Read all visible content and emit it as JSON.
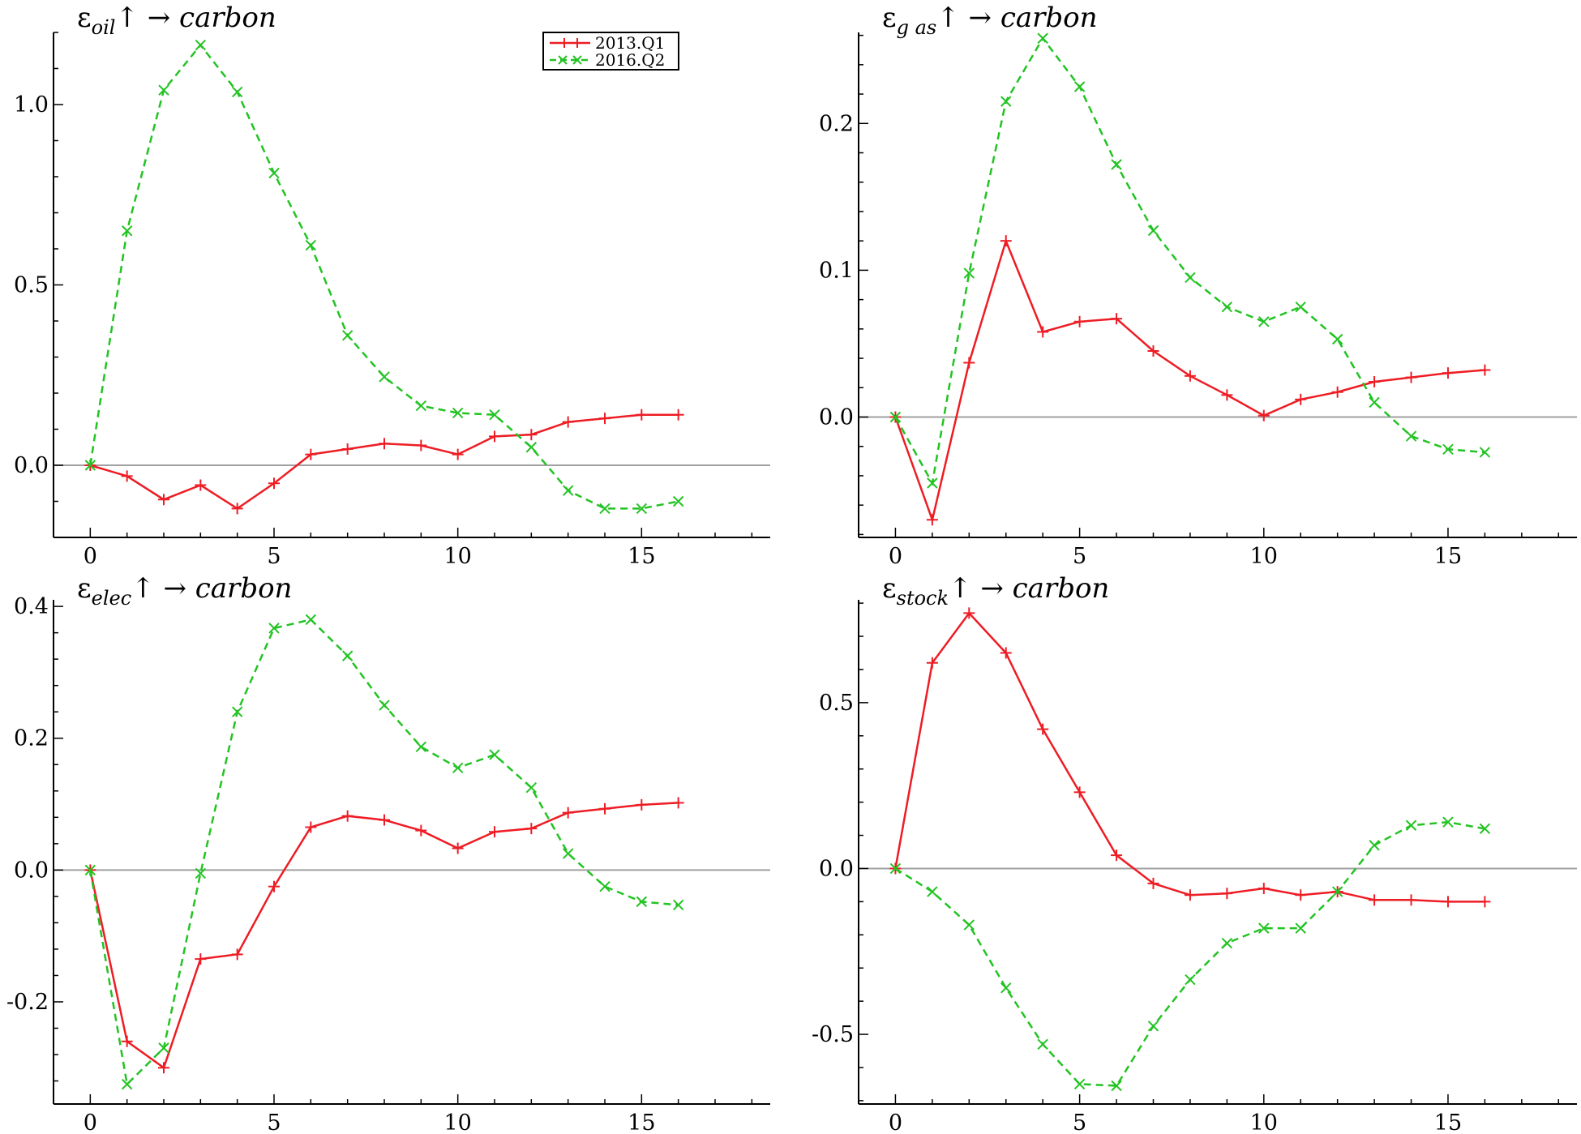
{
  "colors": {
    "series_2013": "#ee1c24",
    "series_2016": "#22c322",
    "zero_line": "#a0a0a0",
    "axis": "#000000"
  },
  "legend": {
    "placement": "top-left panel, top-right",
    "entries": [
      "2013.Q1",
      "2016.Q2"
    ]
  },
  "chart_data": [
    {
      "type": "line",
      "title": {
        "prefix": "ε",
        "sub": "oil",
        "suffix": "↑ → carbon"
      },
      "x": [
        0,
        1,
        2,
        3,
        4,
        5,
        6,
        7,
        8,
        9,
        10,
        11,
        12,
        13,
        14,
        15,
        16
      ],
      "xlim": [
        -1,
        18.5
      ],
      "xticks": [
        "0",
        "5",
        "10",
        "15"
      ],
      "xtick_values": [
        0,
        5,
        10,
        15
      ],
      "ylim": [
        -0.2,
        1.2
      ],
      "yticks": [
        "0.0",
        "0.5",
        "1.0"
      ],
      "ytick_values": [
        0,
        0.5,
        1.0
      ],
      "series": [
        {
          "name": "2013.Q1",
          "style": "solid",
          "marker": "plus",
          "values": [
            0,
            -0.03,
            -0.095,
            -0.055,
            -0.12,
            -0.05,
            0.03,
            0.045,
            0.06,
            0.055,
            0.03,
            0.08,
            0.085,
            0.12,
            0.13,
            0.14,
            0.14
          ]
        },
        {
          "name": "2016.Q2",
          "style": "dashed",
          "marker": "cross",
          "values": [
            0,
            0.65,
            1.04,
            1.165,
            1.035,
            0.81,
            0.61,
            0.36,
            0.245,
            0.165,
            0.145,
            0.14,
            0.05,
            -0.07,
            -0.12,
            -0.12,
            -0.1
          ]
        }
      ]
    },
    {
      "type": "line",
      "title": {
        "prefix": "ε",
        "sub": "g as",
        "suffix": "↑ → carbon"
      },
      "x": [
        0,
        1,
        2,
        3,
        4,
        5,
        6,
        7,
        8,
        9,
        10,
        11,
        12,
        13,
        14,
        15,
        16
      ],
      "xlim": [
        -1,
        18.5
      ],
      "xticks": [
        "0",
        "5",
        "10",
        "15"
      ],
      "xtick_values": [
        0,
        5,
        10,
        15
      ],
      "ylim": [
        -0.082,
        0.262
      ],
      "yticks": [
        "0.0",
        "0.1",
        "0.2"
      ],
      "ytick_values": [
        0,
        0.1,
        0.2
      ],
      "series": [
        {
          "name": "2013.Q1",
          "style": "solid",
          "marker": "plus",
          "values": [
            0,
            -0.07,
            0.037,
            0.12,
            0.058,
            0.065,
            0.067,
            0.045,
            0.028,
            0.015,
            0.001,
            0.012,
            0.017,
            0.024,
            0.027,
            0.03,
            0.032
          ]
        },
        {
          "name": "2016.Q2",
          "style": "dashed",
          "marker": "cross",
          "values": [
            0,
            -0.045,
            0.098,
            0.215,
            0.258,
            0.225,
            0.172,
            0.127,
            0.095,
            0.075,
            0.065,
            0.075,
            0.053,
            0.01,
            -0.013,
            -0.022,
            -0.024
          ]
        }
      ]
    },
    {
      "type": "line",
      "title": {
        "prefix": "ε",
        "sub": "elec",
        "suffix": "↑ → carbon"
      },
      "x": [
        0,
        1,
        2,
        3,
        4,
        5,
        6,
        7,
        8,
        9,
        10,
        11,
        12,
        13,
        14,
        15,
        16
      ],
      "xlim": [
        -1,
        18.5
      ],
      "xticks": [
        "0",
        "5",
        "10",
        "15"
      ],
      "xtick_values": [
        0,
        5,
        10,
        15
      ],
      "ylim": [
        -0.355,
        0.41
      ],
      "yticks": [
        "-0.2",
        "0.0",
        "0.2",
        "0.4"
      ],
      "ytick_values": [
        -0.2,
        0,
        0.2,
        0.4
      ],
      "series": [
        {
          "name": "2013.Q1",
          "style": "solid",
          "marker": "plus",
          "values": [
            0,
            -0.26,
            -0.3,
            -0.135,
            -0.128,
            -0.025,
            0.065,
            0.082,
            0.076,
            0.06,
            0.033,
            0.058,
            0.063,
            0.087,
            0.093,
            0.099,
            0.102
          ]
        },
        {
          "name": "2016.Q2",
          "style": "dashed",
          "marker": "cross",
          "values": [
            0,
            -0.325,
            -0.27,
            -0.005,
            0.24,
            0.367,
            0.38,
            0.325,
            0.25,
            0.187,
            0.155,
            0.175,
            0.125,
            0.025,
            -0.025,
            -0.048,
            -0.053
          ]
        }
      ]
    },
    {
      "type": "line",
      "title": {
        "prefix": "ε",
        "sub": "stock",
        "suffix": "↑ → carbon"
      },
      "x": [
        0,
        1,
        2,
        3,
        4,
        5,
        6,
        7,
        8,
        9,
        10,
        11,
        12,
        13,
        14,
        15,
        16
      ],
      "xlim": [
        -1,
        18.5
      ],
      "xticks": [
        "0",
        "5",
        "10",
        "15"
      ],
      "xtick_values": [
        0,
        5,
        10,
        15
      ],
      "ylim": [
        -0.71,
        0.81
      ],
      "yticks": [
        "-0.5",
        "0.0",
        "0.5"
      ],
      "ytick_values": [
        -0.5,
        0,
        0.5
      ],
      "series": [
        {
          "name": "2013.Q1",
          "style": "solid",
          "marker": "plus",
          "values": [
            0,
            0.62,
            0.77,
            0.65,
            0.42,
            0.23,
            0.04,
            -0.045,
            -0.08,
            -0.075,
            -0.06,
            -0.08,
            -0.07,
            -0.095,
            -0.095,
            -0.1,
            -0.1
          ]
        },
        {
          "name": "2016.Q2",
          "style": "dashed",
          "marker": "cross",
          "values": [
            0,
            -0.07,
            -0.17,
            -0.36,
            -0.53,
            -0.65,
            -0.655,
            -0.475,
            -0.335,
            -0.225,
            -0.18,
            -0.18,
            -0.07,
            0.07,
            0.13,
            0.14,
            0.12
          ]
        }
      ]
    }
  ]
}
